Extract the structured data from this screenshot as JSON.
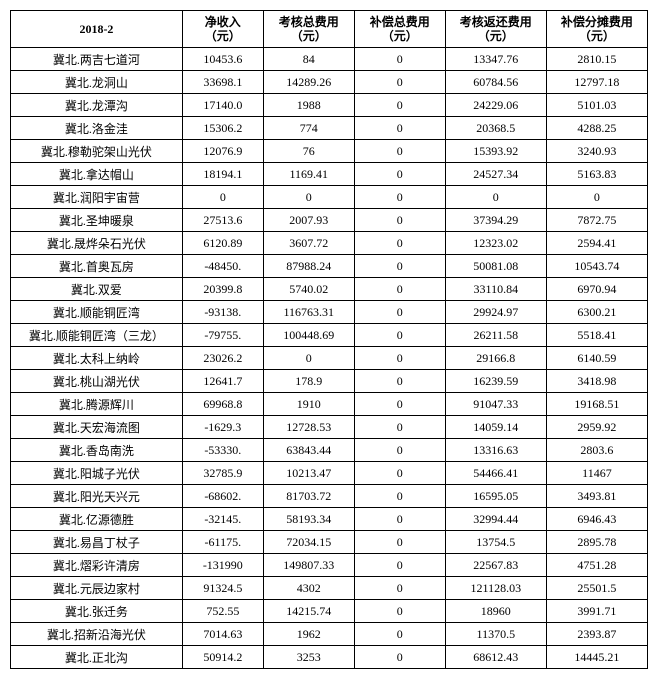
{
  "table": {
    "header_period": "2018-2",
    "columns": [
      {
        "line1": "净收入",
        "line2": "（元）"
      },
      {
        "line1": "考核总费用",
        "line2": "（元）"
      },
      {
        "line1": "补偿总费用",
        "line2": "（元）"
      },
      {
        "line1": "考核返还费用",
        "line2": "（元）"
      },
      {
        "line1": "补偿分摊费用",
        "line2": "（元）"
      }
    ],
    "rows": [
      {
        "name": "冀北.两吉七道河",
        "v": [
          "10453.6",
          "84",
          "0",
          "13347.76",
          "2810.15"
        ]
      },
      {
        "name": "冀北.龙洞山",
        "v": [
          "33698.1",
          "14289.26",
          "0",
          "60784.56",
          "12797.18"
        ]
      },
      {
        "name": "冀北.龙潭沟",
        "v": [
          "17140.0",
          "1988",
          "0",
          "24229.06",
          "5101.03"
        ]
      },
      {
        "name": "冀北.洛金洼",
        "v": [
          "15306.2",
          "774",
          "0",
          "20368.5",
          "4288.25"
        ]
      },
      {
        "name": "冀北.穆勒驼架山光伏",
        "v": [
          "12076.9",
          "76",
          "0",
          "15393.92",
          "3240.93"
        ]
      },
      {
        "name": "冀北.拿达帽山",
        "v": [
          "18194.1",
          "1169.41",
          "0",
          "24527.34",
          "5163.83"
        ]
      },
      {
        "name": "冀北.润阳宇宙营",
        "v": [
          "0",
          "0",
          "0",
          "0",
          "0"
        ]
      },
      {
        "name": "冀北.圣坤暖泉",
        "v": [
          "27513.6",
          "2007.93",
          "0",
          "37394.29",
          "7872.75"
        ]
      },
      {
        "name": "冀北.晟烨朵石光伏",
        "v": [
          "6120.89",
          "3607.72",
          "0",
          "12323.02",
          "2594.41"
        ]
      },
      {
        "name": "冀北.首奥瓦房",
        "v": [
          "-48450.",
          "87988.24",
          "0",
          "50081.08",
          "10543.74"
        ]
      },
      {
        "name": "冀北.双爱",
        "v": [
          "20399.8",
          "5740.02",
          "0",
          "33110.84",
          "6970.94"
        ]
      },
      {
        "name": "冀北.顺能铜匠湾",
        "v": [
          "-93138.",
          "116763.31",
          "0",
          "29924.97",
          "6300.21"
        ]
      },
      {
        "name": "冀北.顺能铜匠湾（三龙）",
        "v": [
          "-79755.",
          "100448.69",
          "0",
          "26211.58",
          "5518.41"
        ]
      },
      {
        "name": "冀北.太科上纳岭",
        "v": [
          "23026.2",
          "0",
          "0",
          "29166.8",
          "6140.59"
        ]
      },
      {
        "name": "冀北.桃山湖光伏",
        "v": [
          "12641.7",
          "178.9",
          "0",
          "16239.59",
          "3418.98"
        ]
      },
      {
        "name": "冀北.腾源辉川",
        "v": [
          "69968.8",
          "1910",
          "0",
          "91047.33",
          "19168.51"
        ]
      },
      {
        "name": "冀北.天宏海流图",
        "v": [
          "-1629.3",
          "12728.53",
          "0",
          "14059.14",
          "2959.92"
        ]
      },
      {
        "name": "冀北.香岛南洗",
        "v": [
          "-53330.",
          "63843.44",
          "0",
          "13316.63",
          "2803.6"
        ]
      },
      {
        "name": "冀北.阳城子光伏",
        "v": [
          "32785.9",
          "10213.47",
          "0",
          "54466.41",
          "11467"
        ]
      },
      {
        "name": "冀北.阳光天兴元",
        "v": [
          "-68602.",
          "81703.72",
          "0",
          "16595.05",
          "3493.81"
        ]
      },
      {
        "name": "冀北.亿源德胜",
        "v": [
          "-32145.",
          "58193.34",
          "0",
          "32994.44",
          "6946.43"
        ]
      },
      {
        "name": "冀北.易昌丁杖子",
        "v": [
          "-61175.",
          "72034.15",
          "0",
          "13754.5",
          "2895.78"
        ]
      },
      {
        "name": "冀北.熠彩许清房",
        "v": [
          "-131990",
          "149807.33",
          "0",
          "22567.83",
          "4751.28"
        ]
      },
      {
        "name": "冀北.元辰边家村",
        "v": [
          "91324.5",
          "4302",
          "0",
          "121128.03",
          "25501.5"
        ]
      },
      {
        "name": "冀北.张迁务",
        "v": [
          "752.55",
          "14215.74",
          "0",
          "18960",
          "3991.71"
        ]
      },
      {
        "name": "冀北.招新沿海光伏",
        "v": [
          "7014.63",
          "1962",
          "0",
          "11370.5",
          "2393.87"
        ]
      },
      {
        "name": "冀北.正北沟",
        "v": [
          "50914.2",
          "3253",
          "0",
          "68612.43",
          "14445.21"
        ]
      }
    ]
  }
}
